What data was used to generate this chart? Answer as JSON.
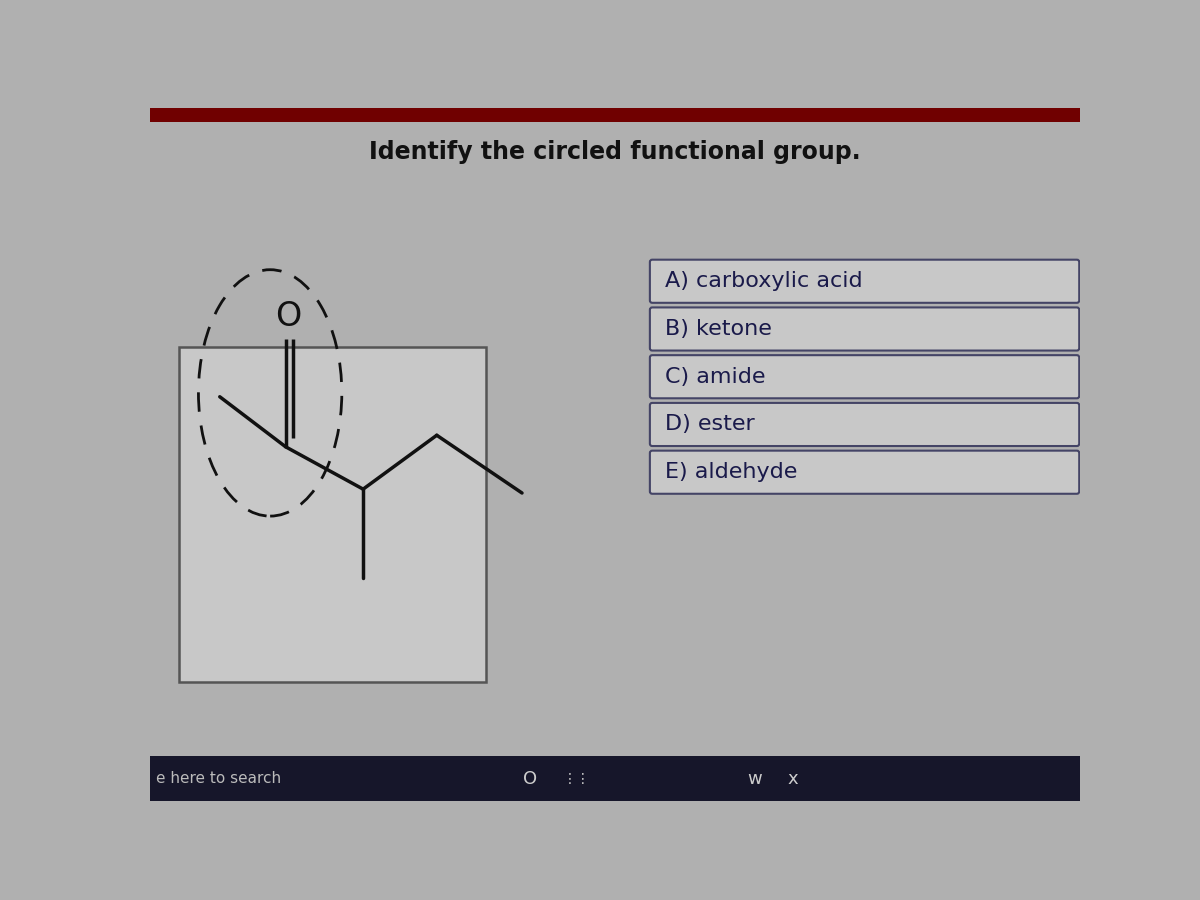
{
  "title": "Identify the circled functional group.",
  "title_fontsize": 17,
  "title_color": "#111111",
  "background_color": "#b0b0b0",
  "mol_box_bg": "#c8c8c8",
  "mol_box_edge": "#555555",
  "choices": [
    "A) carboxylic acid",
    "B) ketone",
    "C) amide",
    "D) ester",
    "E) aldehyde"
  ],
  "choices_text_color": "#1a1a4a",
  "choices_fontsize": 16,
  "choices_box_bg": "#c8c8c8",
  "choices_box_edge": "#444466",
  "bottom_bar_color": "#16162a",
  "bottom_text": "e here to search",
  "bottom_text_color": "#bbbbbb",
  "top_bar_color": "#700000",
  "line_color": "#111111",
  "line_width": 2.5
}
